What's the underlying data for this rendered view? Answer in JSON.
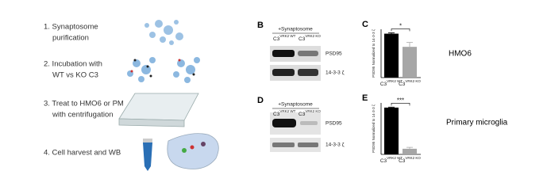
{
  "steps": [
    "1. Synaptosome",
    "purification",
    "2. Incubation with",
    "WT vs KO C3",
    "3. Treat to HMO6 or PM",
    "with centrifugation",
    "4. Cell harvest and WB"
  ],
  "blots": [
    {
      "panel": "B",
      "treatment": "+Synaptosome",
      "lanes": [
        {
          "base": "C3",
          "sup": "VRK2 WT"
        },
        {
          "base": "C3",
          "sup": "VRK2 KO"
        }
      ],
      "rows": [
        "PSD95",
        "14-3-3 ζ"
      ]
    },
    {
      "panel": "D",
      "treatment": "+Synaptosome",
      "lanes": [
        {
          "base": "C3",
          "sup": "VRK2 WT"
        },
        {
          "base": "C3",
          "sup": "VRK2 KO"
        }
      ],
      "rows": [
        "PSD95",
        "14-3-3 ζ"
      ]
    }
  ],
  "chart_data": [
    {
      "type": "bar",
      "panel": "C",
      "cell_type": "HMO6",
      "ylabel": "PSD95 Normalized to 14-3-3 ζ",
      "genotype": "C3",
      "categories": [
        "VRK2 WT",
        "VRK2 KO"
      ],
      "values": [
        1.0,
        0.7
      ],
      "errors": [
        0.02,
        0.1
      ],
      "colors": [
        "#000000",
        "#a6a6a6"
      ],
      "ylim": [
        0,
        1.1
      ],
      "significance": "*"
    },
    {
      "type": "bar",
      "panel": "E",
      "cell_type": "Primary microglia",
      "ylabel": "PSD95 Normalized to 14-3-3 ζ",
      "genotype": "C3",
      "categories": [
        "VRK2 WT",
        "VRK2 KO"
      ],
      "values": [
        1.0,
        0.12
      ],
      "errors": [
        0.01,
        0.03
      ],
      "colors": [
        "#000000",
        "#a6a6a6"
      ],
      "ylim": [
        0,
        1.1
      ],
      "significance": "***"
    }
  ]
}
